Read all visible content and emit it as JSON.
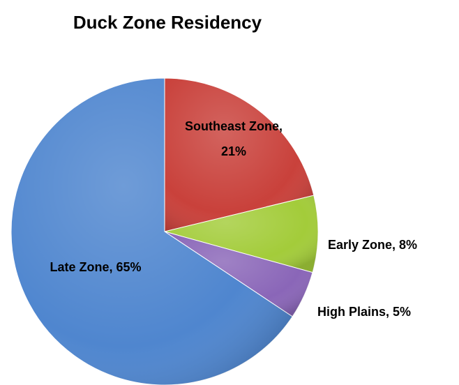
{
  "chart_data": {
    "type": "pie",
    "title": "Duck Zone Residency",
    "values": [
      21,
      8,
      5,
      65
    ],
    "value_labels": [
      "Southeast Zone, 21%",
      "Early Zone, 8%",
      "High Plains, 5%",
      "Late Zone, 65%"
    ],
    "colors": [
      "#c9413b",
      "#a3cc3a",
      "#8a66b8",
      "#4f86cf"
    ]
  }
}
